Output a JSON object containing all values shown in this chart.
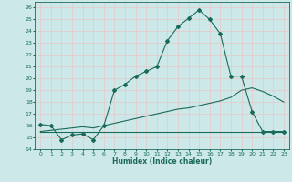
{
  "xlabel": "Humidex (Indice chaleur)",
  "bg_color": "#cce8e8",
  "grid_color": "#aacccc",
  "line_color": "#1a6b5a",
  "xlim": [
    -0.5,
    23.5
  ],
  "ylim": [
    14,
    26.5
  ],
  "xticks": [
    0,
    1,
    2,
    3,
    4,
    5,
    6,
    7,
    8,
    9,
    10,
    11,
    12,
    13,
    14,
    15,
    16,
    17,
    18,
    19,
    20,
    21,
    22,
    23
  ],
  "yticks": [
    14,
    15,
    16,
    17,
    18,
    19,
    20,
    21,
    22,
    23,
    24,
    25,
    26
  ],
  "line1_x": [
    0,
    1,
    2,
    3,
    4,
    5,
    6,
    7,
    8,
    9,
    10,
    11,
    12,
    13,
    14,
    15,
    16,
    17,
    18,
    19,
    20,
    21,
    22,
    23
  ],
  "line1_y": [
    16.1,
    16.0,
    14.8,
    15.2,
    15.3,
    14.8,
    16.0,
    19.0,
    19.5,
    20.2,
    20.6,
    21.0,
    23.2,
    24.4,
    25.1,
    25.8,
    25.0,
    23.8,
    20.2,
    20.2,
    17.2,
    15.5,
    15.5,
    15.5
  ],
  "line2_x": [
    0,
    1,
    2,
    3,
    4,
    5,
    6,
    7,
    8,
    9,
    10,
    11,
    12,
    13,
    14,
    15,
    16,
    17,
    18,
    19,
    20,
    21,
    22,
    23
  ],
  "line2_y": [
    15.5,
    15.5,
    15.5,
    15.5,
    15.5,
    15.5,
    15.5,
    15.5,
    15.5,
    15.5,
    15.5,
    15.5,
    15.5,
    15.5,
    15.5,
    15.5,
    15.5,
    15.5,
    15.5,
    15.5,
    15.5,
    15.5,
    15.5,
    15.5
  ],
  "line3_x": [
    0,
    1,
    2,
    3,
    4,
    5,
    6,
    7,
    8,
    9,
    10,
    11,
    12,
    13,
    14,
    15,
    16,
    17,
    18,
    19,
    20,
    21,
    22,
    23
  ],
  "line3_y": [
    15.5,
    15.6,
    15.7,
    15.8,
    15.9,
    15.8,
    16.0,
    16.2,
    16.4,
    16.6,
    16.8,
    17.0,
    17.2,
    17.4,
    17.5,
    17.7,
    17.9,
    18.1,
    18.4,
    19.0,
    19.2,
    18.9,
    18.5,
    18.0
  ]
}
